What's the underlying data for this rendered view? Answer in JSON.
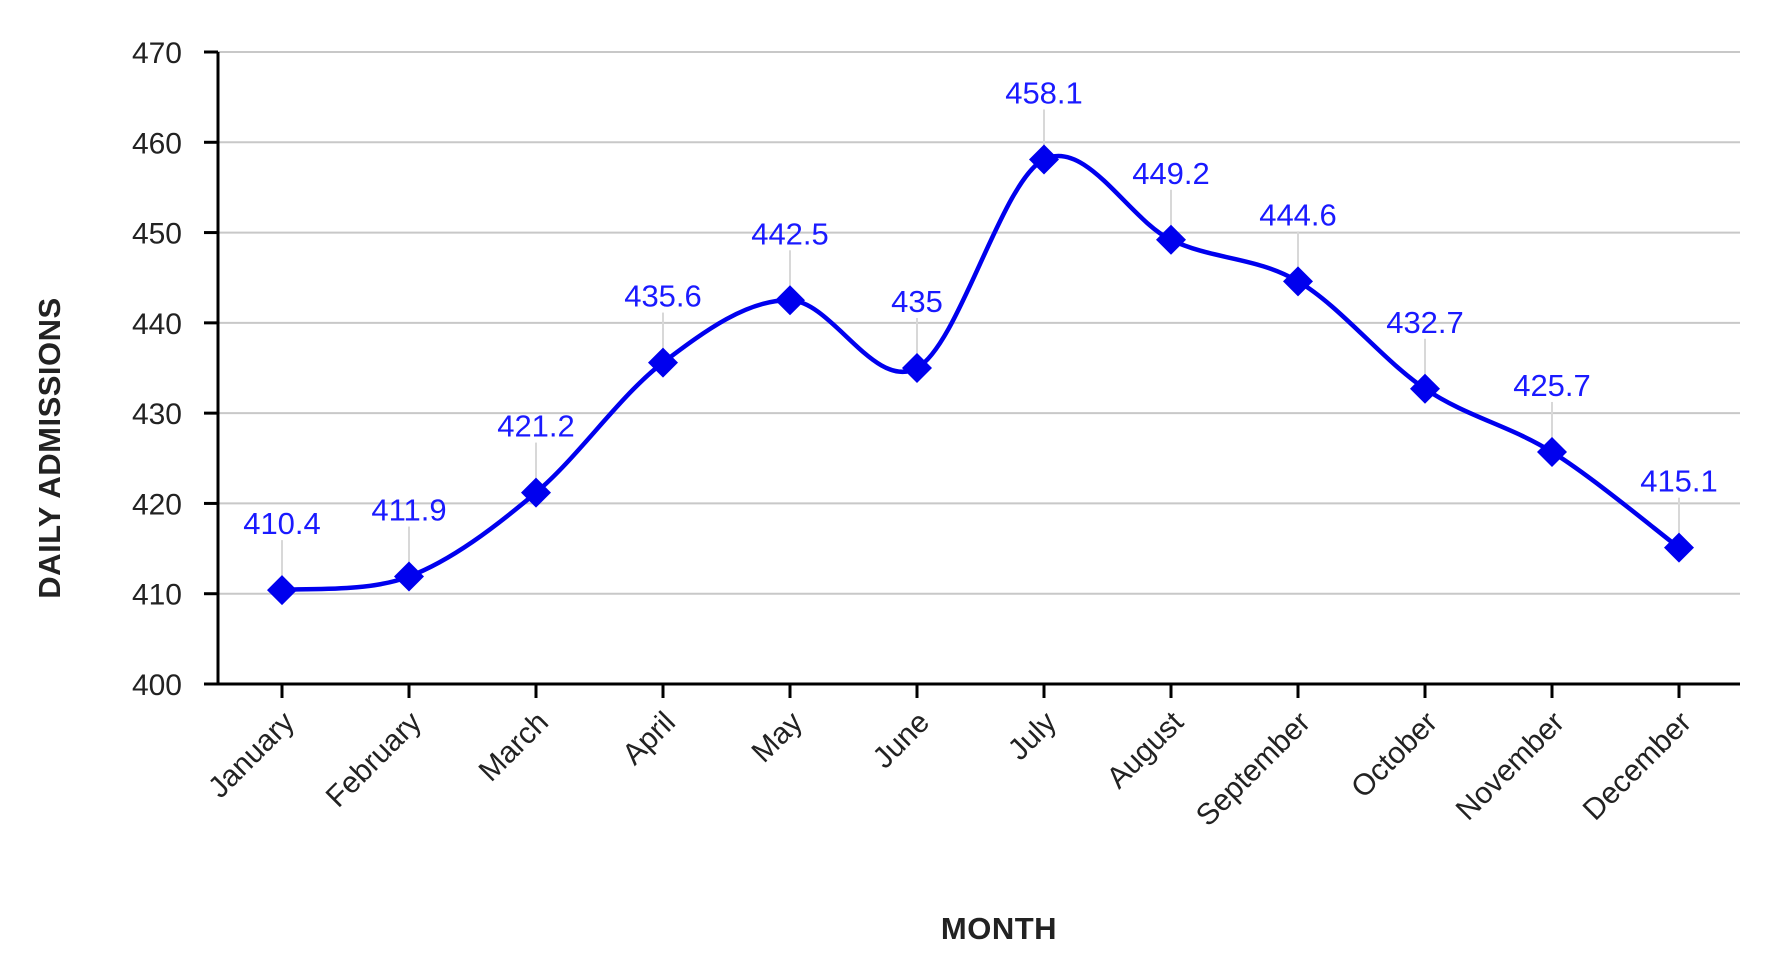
{
  "chart_data": {
    "type": "line",
    "title": "",
    "xlabel": "MONTH",
    "ylabel": "DAILY ADMISSIONS",
    "categories": [
      "January",
      "February",
      "March",
      "April",
      "May",
      "June",
      "July",
      "August",
      "September",
      "October",
      "November",
      "December"
    ],
    "series": [
      {
        "values": [
          410.4,
          411.9,
          421.2,
          435.6,
          442.5,
          435,
          458.1,
          449.2,
          444.6,
          432.7,
          425.7,
          415.1
        ],
        "color": "#0000ee",
        "marker": "diamond",
        "smooth": true
      }
    ],
    "data_labels": [
      "410.4",
      "411.9",
      "421.2",
      "435.6",
      "442.5",
      "435",
      "458.1",
      "449.2",
      "444.6",
      "432.7",
      "425.7",
      "415.1"
    ],
    "ylim": [
      400,
      470
    ],
    "yticks": [
      "400",
      "410",
      "420",
      "430",
      "440",
      "450",
      "460",
      "470"
    ],
    "grid": true,
    "legend": "none"
  }
}
